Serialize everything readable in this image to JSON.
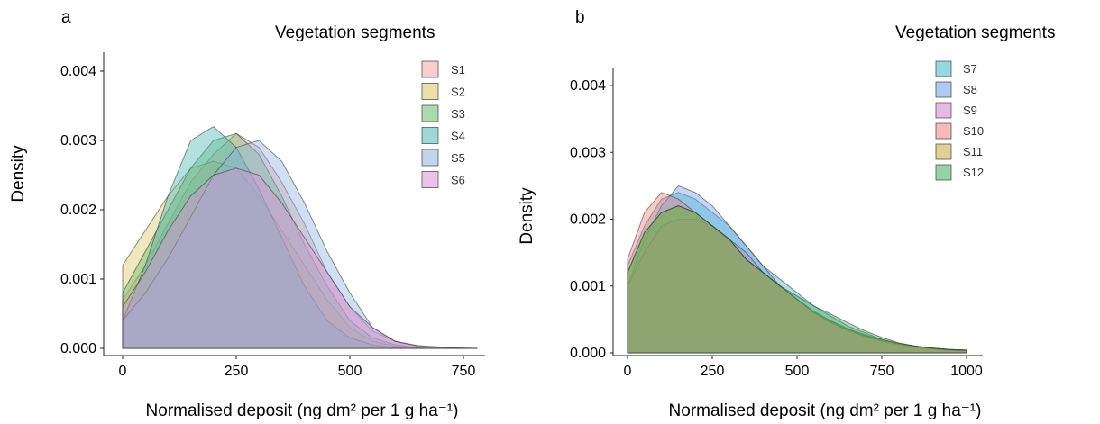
{
  "chart_data": [
    {
      "panel": "a",
      "type": "area",
      "legend_title": "Vegetation segments",
      "legend_position": "top-right",
      "xlabel": "Normalised deposit (ng dm² per 1 g ha⁻¹)",
      "ylabel": "Density",
      "xlim": [
        0,
        900
      ],
      "ylim": [
        0,
        0.0042
      ],
      "x_ticks": [
        0,
        250,
        500,
        750
      ],
      "x_tick_labels": [
        "0",
        "250",
        "500",
        "750"
      ],
      "y_ticks": [
        0,
        0.001,
        0.002,
        0.003,
        0.004
      ],
      "y_tick_labels": [
        "0.000",
        "0.001",
        "0.002",
        "0.003",
        "0.004"
      ],
      "grid": false,
      "x": [
        0,
        50,
        100,
        150,
        200,
        250,
        300,
        350,
        400,
        450,
        500,
        550,
        600,
        650,
        700,
        750,
        780
      ],
      "series": [
        {
          "name": "S1",
          "color": "#f4a6a6",
          "values": [
            0.0007,
            0.0012,
            0.0018,
            0.0024,
            0.0028,
            0.0031,
            0.0029,
            0.0024,
            0.0018,
            0.0011,
            0.0006,
            0.00025,
            0.0001,
            3e-05,
            1e-05,
            0.0,
            0.0
          ]
        },
        {
          "name": "S2",
          "color": "#d9c663",
          "values": [
            0.0012,
            0.0017,
            0.0022,
            0.0026,
            0.0027,
            0.0026,
            0.0022,
            0.0017,
            0.0012,
            0.0007,
            0.0003,
            0.0001,
            3e-05,
            1e-05,
            0.0,
            0.0,
            0.0
          ]
        },
        {
          "name": "S3",
          "color": "#66bb6a",
          "values": [
            0.0008,
            0.0014,
            0.002,
            0.0026,
            0.003,
            0.0031,
            0.0028,
            0.0022,
            0.0015,
            0.0009,
            0.0004,
            0.00015,
            5e-05,
            1e-05,
            0.0,
            0.0,
            0.0
          ]
        },
        {
          "name": "S4",
          "color": "#4db6b6",
          "values": [
            0.0004,
            0.0012,
            0.0022,
            0.003,
            0.0032,
            0.0029,
            0.0023,
            0.0016,
            0.0009,
            0.0004,
            0.00015,
            5e-05,
            1e-05,
            0.0,
            0.0,
            0.0,
            0.0
          ]
        },
        {
          "name": "S5",
          "color": "#8fb3e0",
          "values": [
            0.0004,
            0.0008,
            0.0013,
            0.0019,
            0.0025,
            0.0029,
            0.003,
            0.0027,
            0.0021,
            0.0014,
            0.0008,
            0.0003,
            0.0001,
            3e-05,
            1e-05,
            0.0,
            0.0
          ]
        },
        {
          "name": "S6",
          "color": "#d98fd9",
          "values": [
            0.0006,
            0.0011,
            0.0017,
            0.0022,
            0.0025,
            0.0026,
            0.0025,
            0.0021,
            0.0016,
            0.0011,
            0.0006,
            0.0003,
            0.0001,
            4e-05,
            2e-05,
            5e-06,
            0.0
          ]
        }
      ]
    },
    {
      "panel": "b",
      "type": "area",
      "legend_title": "Vegetation segments",
      "legend_position": "top-right",
      "xlabel": "Normalised deposit (ng dm² per 1 g ha⁻¹)",
      "ylabel": "Density",
      "xlim": [
        0,
        1000
      ],
      "ylim": [
        0,
        0.0042
      ],
      "x_ticks": [
        0,
        250,
        500,
        750,
        1000
      ],
      "x_tick_labels": [
        "0",
        "250",
        "500",
        "750",
        "1000"
      ],
      "y_ticks": [
        0,
        0.001,
        0.002,
        0.003,
        0.004
      ],
      "y_tick_labels": [
        "0.000",
        "0.001",
        "0.002",
        "0.003",
        "0.004"
      ],
      "grid": false,
      "x": [
        0,
        50,
        100,
        150,
        200,
        250,
        300,
        350,
        400,
        450,
        500,
        550,
        600,
        650,
        700,
        750,
        800,
        850,
        900,
        950,
        1000
      ],
      "series": [
        {
          "name": "S7",
          "color": "#3fb8c4",
          "values": [
            0.0013,
            0.0019,
            0.0023,
            0.0024,
            0.0023,
            0.0021,
            0.0019,
            0.0016,
            0.0013,
            0.0011,
            0.0009,
            0.0007,
            0.00055,
            0.0004,
            0.0003,
            0.0002,
            0.00014,
            0.0001,
            7e-05,
            5e-05,
            4e-05
          ]
        },
        {
          "name": "S8",
          "color": "#6b9fe6",
          "values": [
            0.001,
            0.0017,
            0.0022,
            0.0025,
            0.0024,
            0.0022,
            0.0019,
            0.0016,
            0.0013,
            0.001,
            0.0008,
            0.0006,
            0.00045,
            0.00033,
            0.00024,
            0.00017,
            0.00012,
            8e-05,
            6e-05,
            4e-05,
            3e-05
          ]
        },
        {
          "name": "S9",
          "color": "#d181d6",
          "values": [
            0.001,
            0.0015,
            0.0019,
            0.002,
            0.002,
            0.0019,
            0.0017,
            0.0015,
            0.0012,
            0.001,
            0.0008,
            0.0006,
            0.00047,
            0.00035,
            0.00026,
            0.00019,
            0.00014,
            0.0001,
            7e-05,
            5e-05,
            4e-05
          ]
        },
        {
          "name": "S10",
          "color": "#f08080",
          "values": [
            0.0014,
            0.0021,
            0.0024,
            0.0023,
            0.0021,
            0.0019,
            0.0017,
            0.0014,
            0.0012,
            0.001,
            0.0008,
            0.0006,
            0.00045,
            0.00034,
            0.00025,
            0.00018,
            0.00013,
            9e-05,
            6e-05,
            4e-05,
            3e-05
          ]
        },
        {
          "name": "S11",
          "color": "#c7a93a",
          "values": [
            0.0012,
            0.0018,
            0.0021,
            0.0022,
            0.0021,
            0.0019,
            0.0017,
            0.0014,
            0.0012,
            0.001,
            0.0008,
            0.00062,
            0.00048,
            0.00036,
            0.00027,
            0.0002,
            0.00014,
            0.0001,
            7e-05,
            5e-05,
            4e-05
          ]
        },
        {
          "name": "S12",
          "color": "#3fae5a",
          "values": [
            0.0012,
            0.0018,
            0.0021,
            0.0022,
            0.0021,
            0.0019,
            0.0017,
            0.0014,
            0.0012,
            0.001,
            0.00085,
            0.0007,
            0.00058,
            0.00045,
            0.00033,
            0.00023,
            0.00015,
            0.0001,
            7e-05,
            5e-05,
            4e-05
          ]
        }
      ]
    }
  ]
}
